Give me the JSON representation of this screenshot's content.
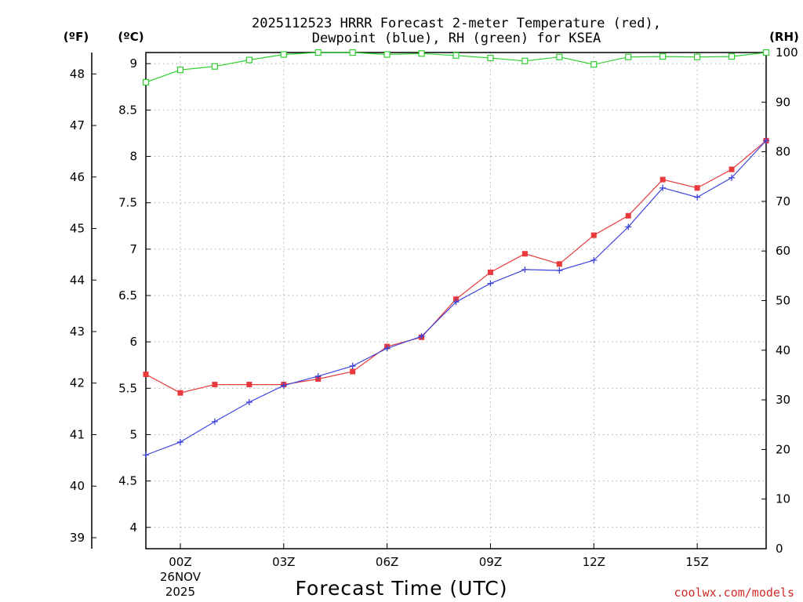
{
  "chart_data": {
    "type": "line",
    "title_line1": "2025112523 HRRR Forecast 2-meter Temperature (red),",
    "title_line2": "Dewpoint (blue), RH (green) for KSEA",
    "xlabel": "Forecast Time (UTC)",
    "credit": "coolwx.com/models",
    "unit_labels": {
      "fahrenheit": "(ºF)",
      "celsius": "(ºC)",
      "rh": "(RH)"
    },
    "x_range": [
      -1,
      17
    ],
    "x_ticks": [
      {
        "hour": 0,
        "label": "00Z",
        "extra": [
          "26NOV",
          "2025"
        ]
      },
      {
        "hour": 3,
        "label": "03Z",
        "extra": []
      },
      {
        "hour": 6,
        "label": "06Z",
        "extra": []
      },
      {
        "hour": 9,
        "label": "09Z",
        "extra": []
      },
      {
        "hour": 12,
        "label": "12Z",
        "extra": []
      },
      {
        "hour": 15,
        "label": "15Z",
        "extra": []
      }
    ],
    "celsius_axis": {
      "range": [
        3.77,
        9.12
      ],
      "ticks": [
        "4",
        "4.5",
        "5",
        "5.5",
        "6",
        "6.5",
        "7",
        "7.5",
        "8",
        "8.5",
        "9"
      ],
      "tick_values": [
        4,
        4.5,
        5,
        5.5,
        6,
        6.5,
        7,
        7.5,
        8,
        8.5,
        9
      ]
    },
    "fahrenheit_axis": {
      "ticks": [
        "39",
        "40",
        "41",
        "42",
        "43",
        "44",
        "45",
        "46",
        "47",
        "48"
      ],
      "tick_values": [
        39,
        40,
        41,
        42,
        43,
        44,
        45,
        46,
        47,
        48
      ]
    },
    "rh_axis": {
      "range": [
        0,
        100
      ],
      "ticks": [
        "0",
        "10",
        "20",
        "30",
        "40",
        "50",
        "60",
        "70",
        "80",
        "90",
        "100"
      ],
      "tick_values": [
        0,
        10,
        20,
        30,
        40,
        50,
        60,
        70,
        80,
        90,
        100
      ]
    },
    "hours": [
      -1,
      0,
      1,
      2,
      3,
      4,
      5,
      6,
      7,
      8,
      9,
      10,
      11,
      12,
      13,
      14,
      15,
      16,
      17
    ],
    "series": [
      {
        "name": "Temperature",
        "axis": "celsius",
        "color": "#e8393c",
        "marker": "square-filled",
        "values": [
          5.65,
          5.45,
          5.54,
          5.54,
          5.54,
          5.6,
          5.68,
          5.95,
          6.05,
          6.46,
          6.75,
          6.95,
          6.84,
          7.15,
          7.36,
          7.75,
          7.66,
          7.86,
          8.17
        ]
      },
      {
        "name": "Dewpoint",
        "axis": "celsius",
        "color": "#3e46dc",
        "marker": "plus",
        "values": [
          4.78,
          4.92,
          5.14,
          5.35,
          5.53,
          5.63,
          5.74,
          5.93,
          6.06,
          6.43,
          6.63,
          6.78,
          6.77,
          6.88,
          7.24,
          7.66,
          7.56,
          7.77,
          8.17
        ]
      },
      {
        "name": "RH",
        "axis": "rh",
        "color": "#2fcf2f",
        "marker": "square-open",
        "values": [
          94,
          96.5,
          97.2,
          98.5,
          99.6,
          100,
          100,
          99.6,
          99.8,
          99.4,
          98.9,
          98.3,
          99.1,
          97.6,
          99.1,
          99.2,
          99.1,
          99.2,
          100
        ]
      }
    ]
  }
}
